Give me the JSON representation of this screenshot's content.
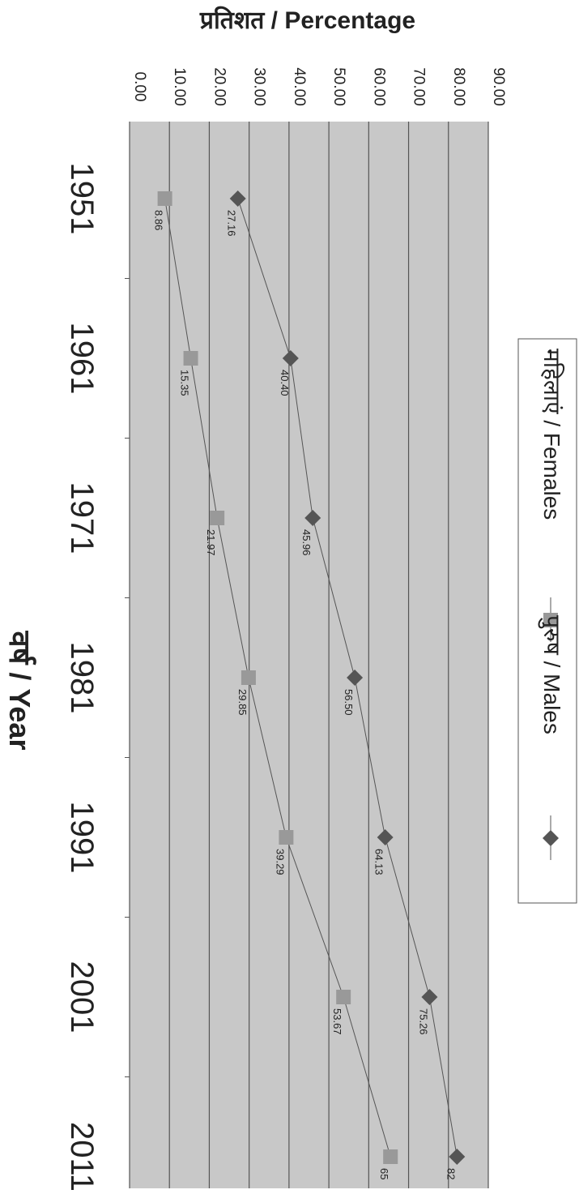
{
  "chart_data": {
    "type": "line",
    "orientation": "rotated-90-clockwise",
    "title": "",
    "ylabel": "प्रतिशत / Percentage",
    "xlabel": "वर्ष / Year",
    "ylim": [
      0,
      90
    ],
    "yticks": [
      "0.00",
      "10.00",
      "20.00",
      "30.00",
      "40.00",
      "50.00",
      "60.00",
      "70.00",
      "80.00",
      "90.00"
    ],
    "categories": [
      "1951",
      "1961",
      "1971",
      "1981",
      "1991",
      "2001",
      "2011"
    ],
    "grid": true,
    "legend_position": "right",
    "series": [
      {
        "name": "पुरुष / Males",
        "marker": "diamond",
        "color": "#555555",
        "values": [
          27.16,
          40.4,
          45.96,
          56.5,
          64.13,
          75.26,
          82.14
        ],
        "labels": [
          "27.16",
          "40.40",
          "45.96",
          "56.50",
          "64.13",
          "75.26",
          "82"
        ]
      },
      {
        "name": "महिलाएं / Females",
        "marker": "square",
        "color": "#999999",
        "values": [
          8.86,
          15.35,
          21.97,
          29.85,
          39.29,
          53.67,
          65.46
        ],
        "labels": [
          "8.86",
          "15.35",
          "21.97",
          "29.85",
          "39.29",
          "53.67",
          "65"
        ]
      }
    ],
    "colors": {
      "plot_background": "#c8c8c8",
      "gridline": "#555555",
      "line": "#555555"
    }
  }
}
